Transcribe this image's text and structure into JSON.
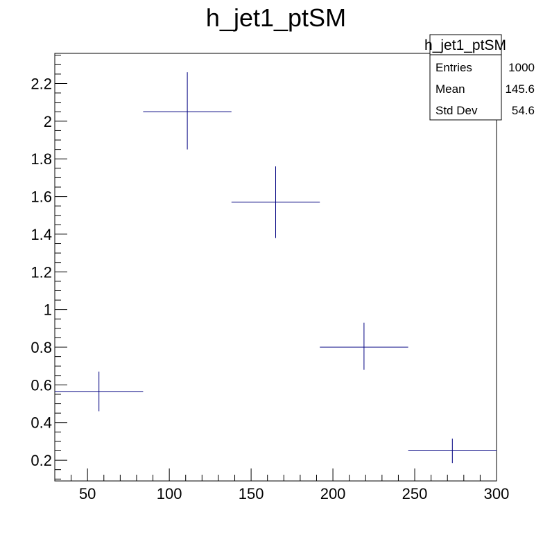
{
  "chart_data": {
    "type": "scatter",
    "title": "h_jet1_ptSM",
    "xlabel": "",
    "ylabel": "",
    "xlim": [
      30,
      300
    ],
    "ylim": [
      0.09,
      2.36
    ],
    "grid": false,
    "x_ticks": [
      50,
      100,
      150,
      200,
      250,
      300
    ],
    "x_tick_labels": [
      "50",
      "100",
      "150",
      "200",
      "250",
      "300"
    ],
    "y_ticks": [
      0.2,
      0.4,
      0.6,
      0.8,
      1,
      1.2,
      1.4,
      1.6,
      1.8,
      2,
      2.2
    ],
    "y_tick_labels": [
      "0.2",
      "0.4",
      "0.6",
      "0.8",
      "1",
      "1.2",
      "1.4",
      "1.6",
      "1.8",
      "2",
      "2.2"
    ],
    "series": [
      {
        "color": "#000080",
        "points": [
          {
            "x": 57,
            "xlow": 30,
            "xhigh": 84,
            "y": 0.565,
            "ylow": 0.46,
            "yhigh": 0.67
          },
          {
            "x": 111,
            "xlow": 84,
            "xhigh": 138,
            "y": 2.05,
            "ylow": 1.85,
            "yhigh": 2.26
          },
          {
            "x": 165,
            "xlow": 138,
            "xhigh": 192,
            "y": 1.57,
            "ylow": 1.38,
            "yhigh": 1.76
          },
          {
            "x": 219,
            "xlow": 192,
            "xhigh": 246,
            "y": 0.8,
            "ylow": 0.68,
            "yhigh": 0.93
          },
          {
            "x": 273,
            "xlow": 246,
            "xhigh": 300,
            "y": 0.25,
            "ylow": 0.185,
            "yhigh": 0.315
          }
        ]
      }
    ],
    "stats_box": {
      "title": "h_jet1_ptSM",
      "rows": [
        {
          "label": "Entries",
          "value": "1000"
        },
        {
          "label": "Mean",
          "value": "145.6"
        },
        {
          "label": "Std Dev",
          "value": "54.6"
        }
      ]
    }
  }
}
